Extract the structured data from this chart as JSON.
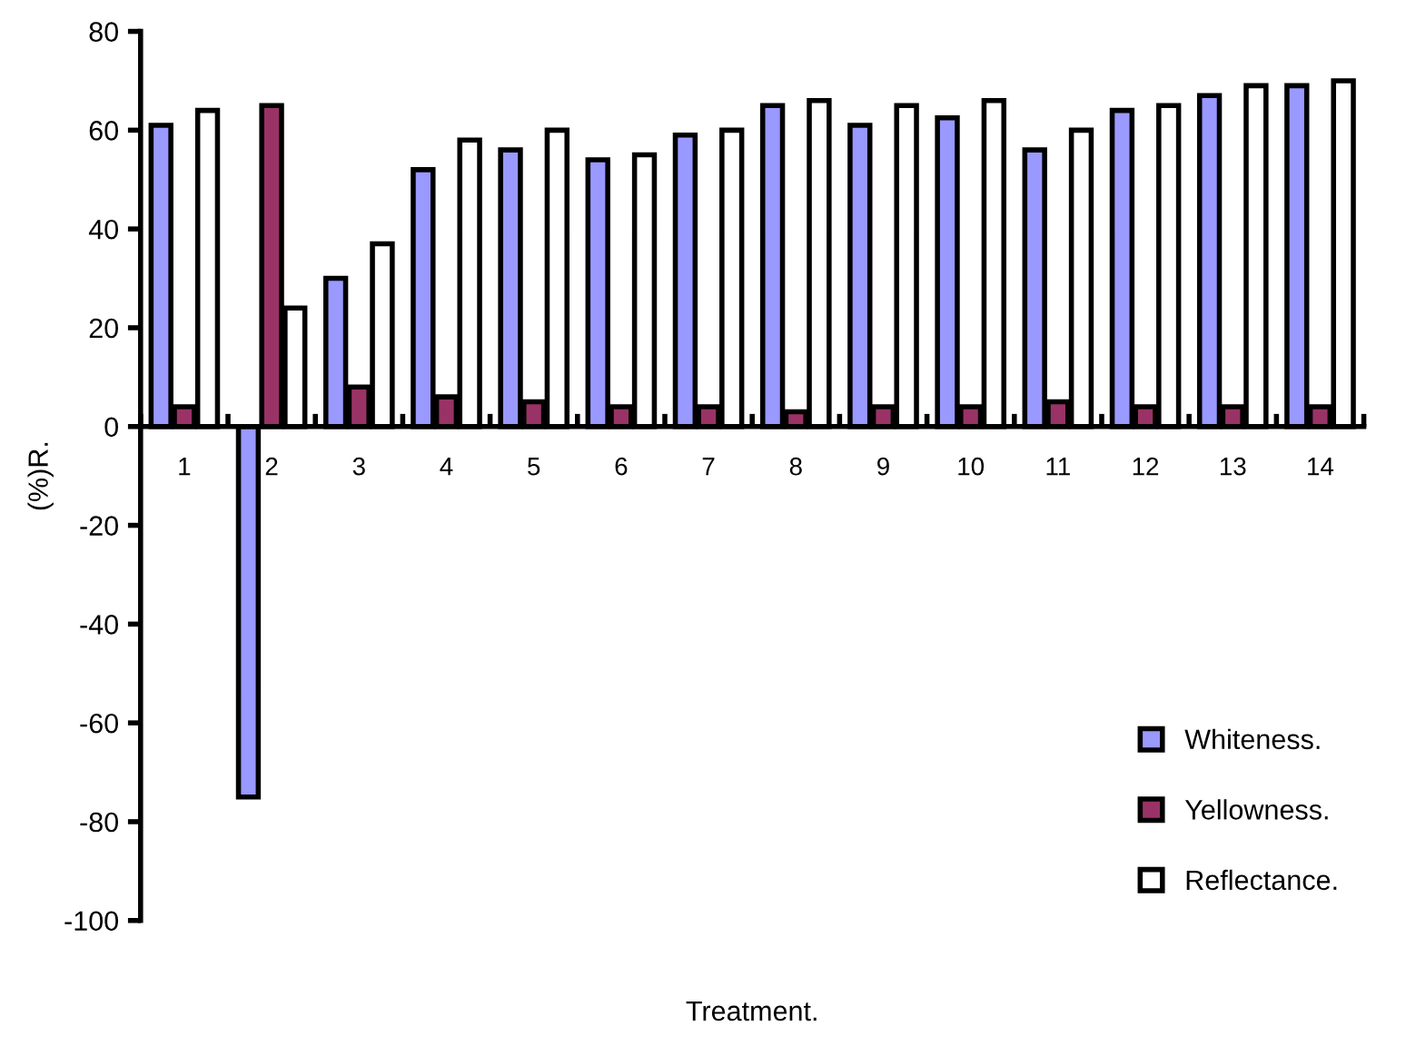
{
  "chart_data": {
    "type": "bar",
    "xlabel": "Treatment.",
    "ylabel": "(%)R.",
    "categories": [
      "1",
      "2",
      "3",
      "4",
      "5",
      "6",
      "7",
      "8",
      "9",
      "10",
      "11",
      "12",
      "13",
      "14"
    ],
    "series": [
      {
        "name": "Whiteness.",
        "color": "#9999ff",
        "values": [
          61,
          -75,
          30,
          52,
          56,
          54,
          59,
          65,
          61,
          62.5,
          56,
          64,
          67,
          69
        ]
      },
      {
        "name": "Yellowness.",
        "color": "#993366",
        "values": [
          4,
          65,
          8,
          6,
          5,
          4,
          4,
          3,
          4,
          4,
          5,
          4,
          4,
          4
        ]
      },
      {
        "name": "Reflectance.",
        "color": "#ffffff",
        "values": [
          64,
          24,
          37,
          58,
          60,
          55,
          60,
          66,
          65,
          66,
          60,
          65,
          69,
          70
        ]
      }
    ],
    "ylim": [
      -100,
      80
    ],
    "yticks": [
      -100,
      -80,
      -60,
      -40,
      -20,
      0,
      20,
      40,
      60,
      80
    ],
    "grid": false,
    "legend": "bottom right"
  }
}
